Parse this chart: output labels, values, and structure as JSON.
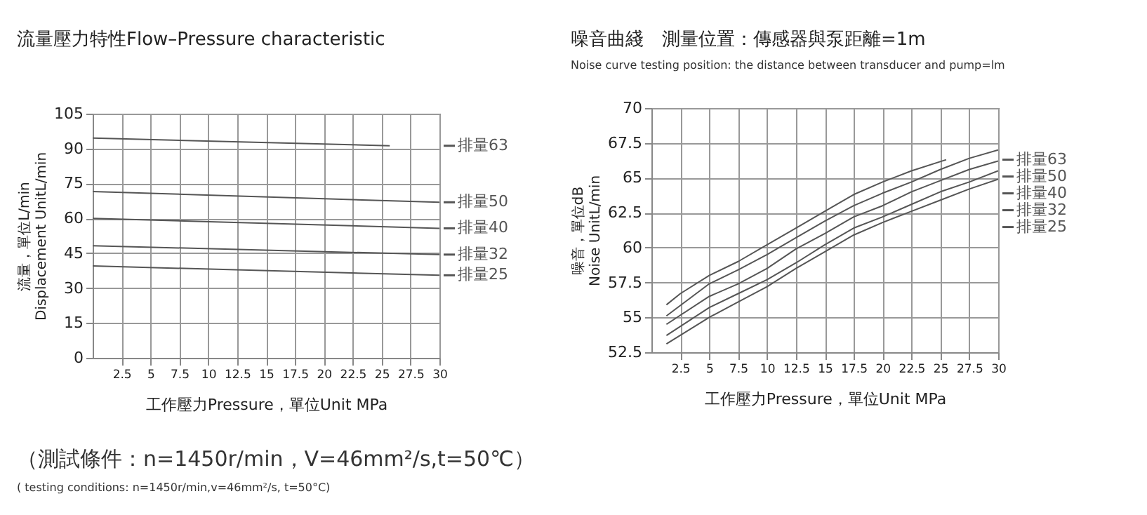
{
  "chart_data": [
    {
      "type": "line",
      "title": "流量壓力特性Flow–Pressure  characteristic",
      "xlabel": "工作壓力Pressure，單位Unit MPa",
      "ylabel": "流量，單位L/min\nDisplacement UnitL/min",
      "xlim": [
        0,
        30
      ],
      "xticks": [
        2.5,
        5,
        7.5,
        10,
        12.5,
        15,
        17.5,
        20,
        22.5,
        25,
        27.5,
        30
      ],
      "ylim": [
        0,
        105
      ],
      "yticks": [
        0,
        15,
        30,
        45,
        60,
        75,
        90,
        105
      ],
      "grid": true,
      "legend": "right",
      "series": [
        {
          "name": "排量63",
          "color": "#555555",
          "x": [
            0,
            25.7
          ],
          "values": [
            94.5,
            91.2
          ]
        },
        {
          "name": "排量50",
          "color": "#555555",
          "x": [
            0,
            30
          ],
          "values": [
            71.5,
            66.9
          ]
        },
        {
          "name": "排量40",
          "color": "#555555",
          "x": [
            0,
            30
          ],
          "values": [
            60,
            55.7
          ]
        },
        {
          "name": "排量32",
          "color": "#555555",
          "x": [
            0,
            30
          ],
          "values": [
            48.2,
            44.4
          ]
        },
        {
          "name": "排量25",
          "color": "#555555",
          "x": [
            0,
            30
          ],
          "values": [
            39.5,
            35.5
          ]
        }
      ],
      "annotations": [
        "（測試條件：n=1450r/min，V=46mm²/s,t=50℃）",
        "( testing conditions:  n=1450r/min,v=46mm²/s,  t=50°C)"
      ]
    },
    {
      "type": "line",
      "title": "噪音曲綫　測量位置：傳感器與泵距離=1m",
      "subtitle": "Noise curve          testing position:  the distance between transducer and pump=lm",
      "xlabel": "工作壓力Pressure，單位Unit MPa",
      "ylabel": "噪音，單位dB\nNoise UnitL/min",
      "xlim": [
        0,
        30
      ],
      "xticks": [
        2.5,
        5,
        7.5,
        10,
        12.5,
        15,
        17.5,
        20,
        22.5,
        25,
        27.5,
        30
      ],
      "ylim": [
        52.5,
        70
      ],
      "yticks": [
        52.5,
        55,
        57.5,
        60,
        62.5,
        65,
        67.5,
        70
      ],
      "grid": true,
      "legend": "right",
      "series": [
        {
          "name": "排量63",
          "color": "#555555",
          "x": [
            1.3,
            2.5,
            5,
            7.5,
            10,
            12.5,
            15,
            17.5,
            20,
            22.5,
            25.5
          ],
          "values": [
            55.9,
            56.7,
            58.0,
            59.0,
            60.2,
            61.4,
            62.6,
            63.8,
            64.7,
            65.5,
            66.3
          ]
        },
        {
          "name": "排量50",
          "color": "#555555",
          "x": [
            1.3,
            5,
            7.5,
            10,
            12.5,
            15,
            17.5,
            20,
            22.5,
            25,
            27.5,
            30
          ],
          "values": [
            55.1,
            57.4,
            58.4,
            59.5,
            60.7,
            61.9,
            63.0,
            63.9,
            64.7,
            65.6,
            66.4,
            67.0
          ]
        },
        {
          "name": "排量40",
          "color": "#555555",
          "x": [
            1.3,
            5,
            7.5,
            10,
            12.5,
            15,
            17.5,
            20,
            22.5,
            25,
            27.5,
            30
          ],
          "values": [
            54.5,
            56.5,
            57.4,
            58.5,
            59.9,
            61.0,
            62.2,
            63.0,
            64.0,
            64.8,
            65.6,
            66.2
          ]
        },
        {
          "name": "排量32",
          "color": "#555555",
          "x": [
            1.3,
            5,
            7.5,
            10,
            12.5,
            15,
            17.5,
            20,
            22.5,
            25,
            27.5,
            30
          ],
          "values": [
            53.7,
            55.7,
            56.7,
            57.7,
            58.9,
            60.2,
            61.4,
            62.2,
            63.1,
            64.0,
            64.7,
            65.5
          ]
        },
        {
          "name": "排量25",
          "color": "#555555",
          "x": [
            1.3,
            5,
            7.5,
            10,
            12.5,
            15,
            17.5,
            20,
            22.5,
            25,
            27.5,
            30
          ],
          "values": [
            53.1,
            55.0,
            56.1,
            57.2,
            58.5,
            59.7,
            60.9,
            61.8,
            62.6,
            63.4,
            64.2,
            64.9
          ]
        }
      ]
    }
  ]
}
